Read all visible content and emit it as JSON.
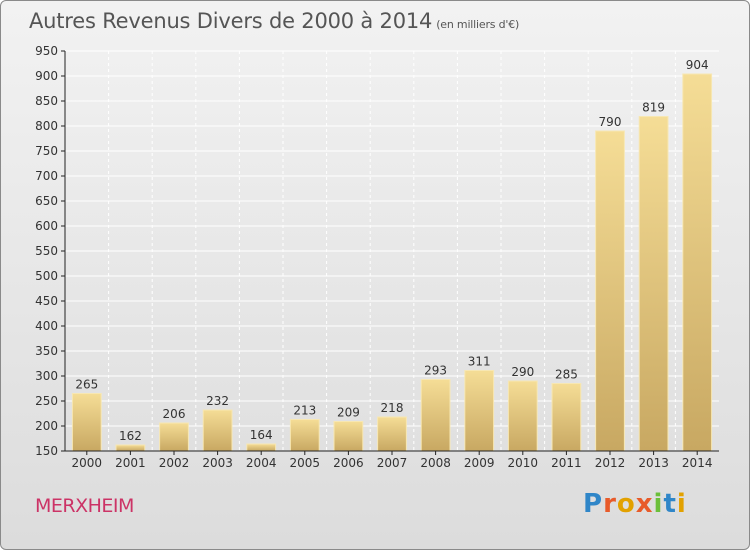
{
  "header": {
    "title": "Autres Revenus Divers de 2000 à 2014",
    "subtitle": "(en milliers d'€)"
  },
  "footer": {
    "place": "MERXHEIM",
    "logo_text": "Proxiti"
  },
  "colors": {
    "bar_top": "#f5dd96",
    "bar_bottom": "#c8a862",
    "grid": "#ffffff",
    "axis": "#222222",
    "place": "#cc3366"
  },
  "chart_data": {
    "type": "bar",
    "title": "Autres Revenus Divers de 2000 à 2014",
    "subtitle": "(en milliers d'€)",
    "categories": [
      "2000",
      "2001",
      "2002",
      "2003",
      "2004",
      "2005",
      "2006",
      "2007",
      "2008",
      "2009",
      "2010",
      "2011",
      "2012",
      "2013",
      "2014"
    ],
    "values": [
      265,
      162,
      206,
      232,
      164,
      213,
      209,
      218,
      293,
      311,
      290,
      285,
      790,
      819,
      904
    ],
    "ylim": [
      150,
      950
    ],
    "yticks": [
      150,
      200,
      250,
      300,
      350,
      400,
      450,
      500,
      550,
      600,
      650,
      700,
      750,
      800,
      850,
      900,
      950
    ],
    "grid": true,
    "data_labels": true
  }
}
